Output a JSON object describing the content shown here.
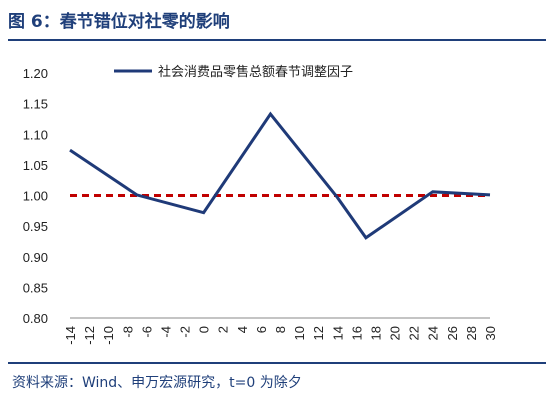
{
  "title": "图 6：春节错位对社零的影响",
  "source": "资料来源：Wind、申万宏源研究，t=0 为除夕",
  "colors": {
    "series": "#1f3a78",
    "reference": "#c00000",
    "axis": "#888888",
    "brand": "#1f3f7a"
  },
  "chart_data": {
    "type": "line",
    "title": "",
    "xlabel": "",
    "ylabel": "",
    "ylim": [
      0.8,
      1.2
    ],
    "yticks": [
      "0.80",
      "0.85",
      "0.90",
      "0.95",
      "1.00",
      "1.05",
      "1.10",
      "1.15",
      "1.20"
    ],
    "xlim": [
      -14,
      30
    ],
    "xticks": [
      "-14",
      "-12",
      "-10",
      "-8",
      "-6",
      "-4",
      "-2",
      "0",
      "2",
      "4",
      "6",
      "8",
      "10",
      "12",
      "14",
      "16",
      "18",
      "20",
      "22",
      "24",
      "26",
      "28",
      "30"
    ],
    "grid": false,
    "legend": "top",
    "series": [
      {
        "name": "社会消费品零售总额春节调整因子",
        "x": [
          -14,
          -7,
          0,
          7,
          14,
          17,
          24,
          31
        ],
        "y": [
          1.074,
          1.001,
          0.972,
          1.133,
          0.997,
          0.931,
          1.006,
          1.001
        ]
      }
    ],
    "reference_line": {
      "y": 1.0,
      "style": "dashed"
    }
  }
}
